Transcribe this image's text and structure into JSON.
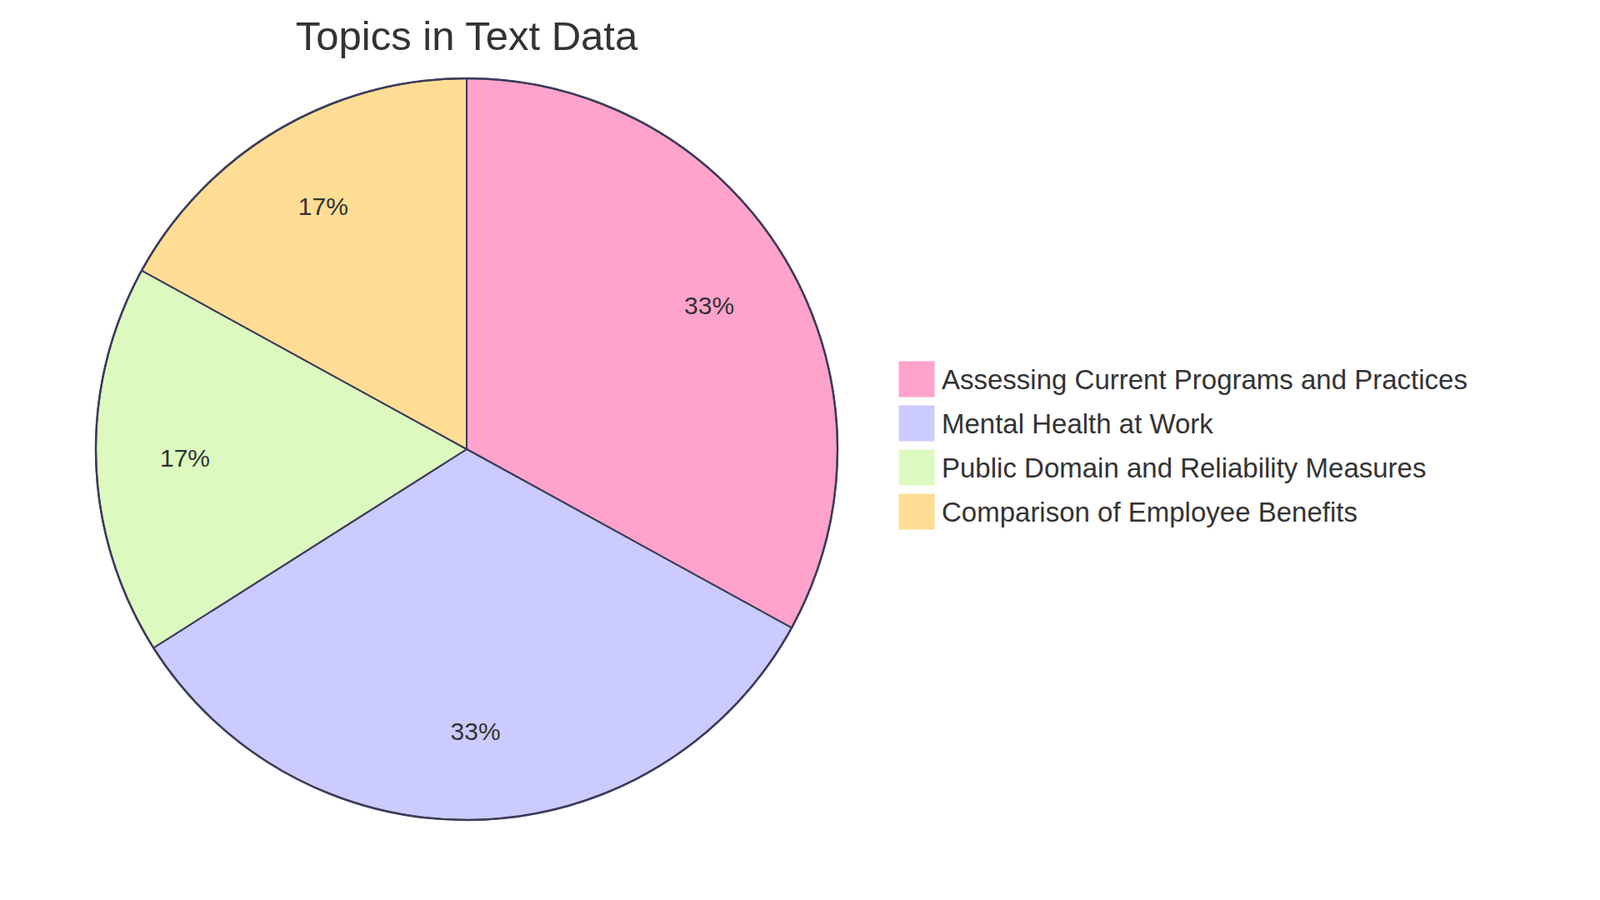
{
  "chart_data": {
    "type": "pie",
    "title": "Topics in Text Data",
    "categories": [
      "Assessing Current Programs and Practices",
      "Mental Health at Work",
      "Public Domain and Reliability Measures",
      "Comparison of Employee Benefits"
    ],
    "values": [
      33,
      33,
      17,
      17
    ],
    "value_labels": [
      "33%",
      "33%",
      "17%",
      "17%"
    ],
    "colors": [
      "#ffa3cc",
      "#cbcbff",
      "#dcfac0",
      "#ffdd94"
    ],
    "data_labels": true,
    "legend": "right"
  }
}
